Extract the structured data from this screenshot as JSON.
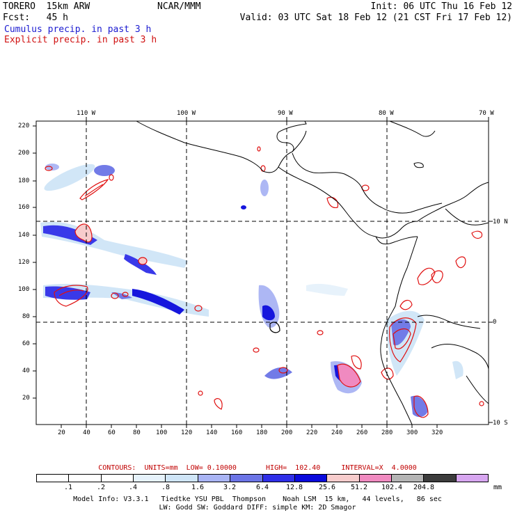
{
  "header": {
    "model": "TORERO  15km ARW",
    "org": "NCAR/MMM",
    "init": "Init: 06 UTC Thu 16 Feb 12",
    "fcst": "Fcst:   45 h",
    "valid": "Valid: 03 UTC Sat 18 Feb 12 (21 CST Fri 17 Feb 12)",
    "line_cumulus": "Cumulus precip. in past 3 h",
    "line_explicit": "Explicit precip. in past 3 h"
  },
  "axes": {
    "longitudes": [
      "110 W",
      "100 W",
      "90 W",
      "80 W",
      "70 W"
    ],
    "latitudes": [
      "10 N",
      "0",
      "10 S"
    ],
    "x_ticks": [
      "20",
      "40",
      "60",
      "80",
      "100",
      "120",
      "140",
      "160",
      "180",
      "200",
      "220",
      "240",
      "260",
      "280",
      "300",
      "320"
    ],
    "y_ticks": [
      "220",
      "200",
      "180",
      "160",
      "140",
      "120",
      "100",
      "80",
      "60",
      "40",
      "20"
    ]
  },
  "contours": {
    "label": "CONTOURS:  UNITS=mm  LOW= 0.10000       HIGH=  102.40     INTERVAL=X  4.0000"
  },
  "colorbar": {
    "unit": "mm",
    "labels": [
      ".1",
      ".2",
      ".4",
      ".8",
      "1.6",
      "3.2",
      "6.4",
      "12.8",
      "25.6",
      "51.2",
      "102.4",
      "204.8"
    ],
    "colors": [
      "#ffffff",
      "#ffffff",
      "#ffffff",
      "#e6f2fb",
      "#cfe5f7",
      "#a9b4f4",
      "#6b74e6",
      "#2f2fe8",
      "#0a0adc",
      "#f7cccc",
      "#f08ac0",
      "#b4b4b4",
      "#3c3c3c",
      "#d7a6f0"
    ]
  },
  "footer": {
    "line1": "Model Info: V3.3.1   Tiedtke YSU PBL  Thompson    Noah LSM  15 km,   44 levels,   86 sec",
    "line2": "LW: Godd SW: Goddard DIFF: simple KM: 2D Smagor"
  }
}
